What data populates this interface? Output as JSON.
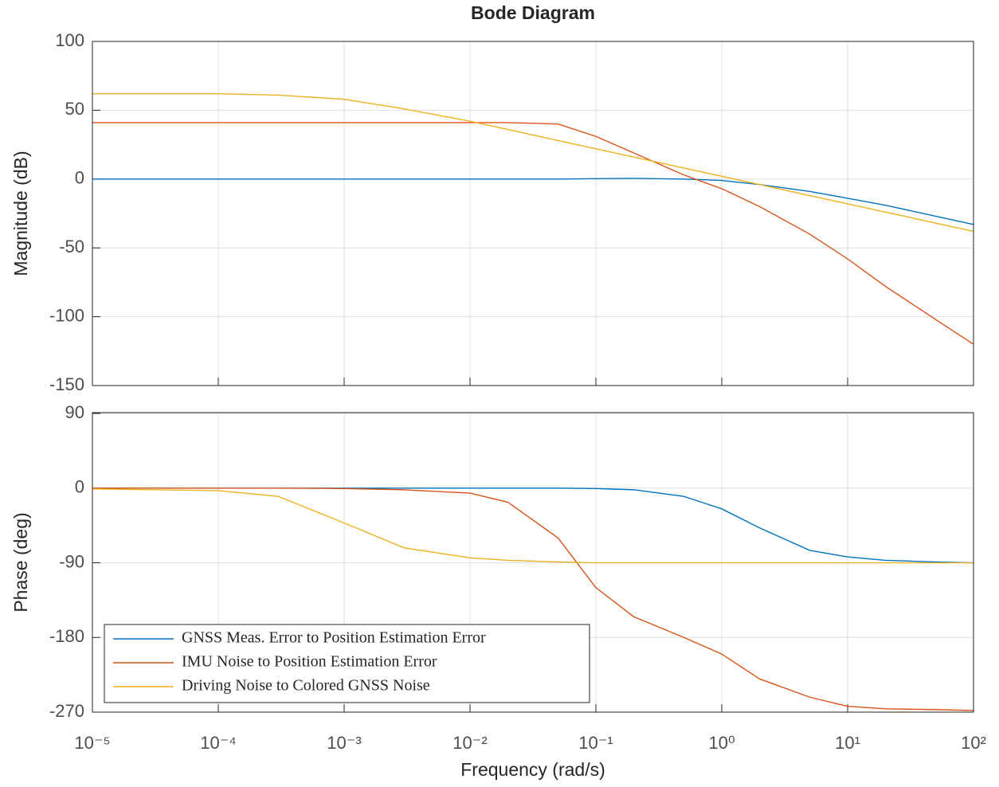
{
  "chart_data": [
    {
      "type": "line",
      "title": "Bode Diagram",
      "ylabel": "Magnitude (dB)",
      "xscale": "log",
      "grid": true,
      "xlim": [
        1e-05,
        100
      ],
      "xticks": [
        1e-05,
        0.0001,
        0.001,
        0.01,
        0.1,
        1,
        10,
        100
      ],
      "ylim": [
        -150,
        100
      ],
      "yticks": [
        100,
        50,
        0,
        -50,
        -100,
        -150
      ],
      "x": [
        1e-05,
        0.0001,
        0.0003,
        0.001,
        0.003,
        0.01,
        0.02,
        0.05,
        0.1,
        0.2,
        0.5,
        1,
        2,
        5,
        10,
        20,
        50,
        100
      ],
      "series": [
        {
          "color": "#0072bd",
          "values": [
            0,
            0,
            0,
            0,
            0,
            0,
            0,
            0,
            0.3,
            0.5,
            0,
            -1,
            -4,
            -9,
            -14,
            -19,
            -27,
            -33
          ]
        },
        {
          "color": "#d95319",
          "values": [
            41,
            41,
            41,
            41,
            41,
            41,
            41,
            40,
            31,
            19,
            3,
            -7,
            -20,
            -40,
            -58,
            -78,
            -102,
            -120
          ]
        },
        {
          "color": "#edb120",
          "values": [
            62,
            62,
            61,
            58,
            51,
            42,
            36,
            28,
            22,
            16,
            8,
            2,
            -4,
            -12,
            -18,
            -24,
            -32,
            -38
          ]
        }
      ]
    },
    {
      "type": "line",
      "ylabel": "Phase (deg)",
      "xlabel": "Frequency  (rad/s)",
      "xscale": "log",
      "grid": true,
      "legend": "lower left",
      "xlim": [
        1e-05,
        100
      ],
      "xticks": [
        {
          "value": 1e-05,
          "label": "10⁻⁵"
        },
        {
          "value": 0.0001,
          "label": "10⁻⁴"
        },
        {
          "value": 0.001,
          "label": "10⁻³"
        },
        {
          "value": 0.01,
          "label": "10⁻²"
        },
        {
          "value": 0.1,
          "label": "10⁻¹"
        },
        {
          "value": 1,
          "label": "10⁰"
        },
        {
          "value": 10,
          "label": "10¹"
        },
        {
          "value": 100,
          "label": "10²"
        }
      ],
      "ylim": [
        -270,
        91
      ],
      "yticks": [
        90,
        0,
        -90,
        -180,
        -270
      ],
      "x": [
        1e-05,
        0.0001,
        0.0003,
        0.001,
        0.003,
        0.01,
        0.02,
        0.05,
        0.1,
        0.2,
        0.5,
        1,
        2,
        5,
        10,
        20,
        50,
        100
      ],
      "series": [
        {
          "name": "GNSS Meas. Error to Position Estimation Error",
          "color": "#0072bd",
          "values": [
            0,
            0,
            0,
            0,
            0,
            0,
            0,
            0,
            -0.5,
            -2,
            -10,
            -25,
            -48,
            -75,
            -83,
            -87,
            -89,
            -90
          ]
        },
        {
          "name": "IMU Noise to Position Estimation Error",
          "color": "#d95319",
          "values": [
            0,
            0,
            0,
            -0.5,
            -2,
            -6,
            -17,
            -60,
            -120,
            -155,
            -180,
            -200,
            -230,
            -252,
            -263,
            -266,
            -267,
            -268
          ]
        },
        {
          "name": "Driving Noise to Colored GNSS Noise",
          "color": "#edb120",
          "values": [
            -1,
            -3,
            -10,
            -42,
            -72,
            -84,
            -87,
            -89,
            -90,
            -90,
            -90,
            -90,
            -90,
            -90,
            -90,
            -90,
            -90,
            -90
          ]
        }
      ]
    }
  ]
}
